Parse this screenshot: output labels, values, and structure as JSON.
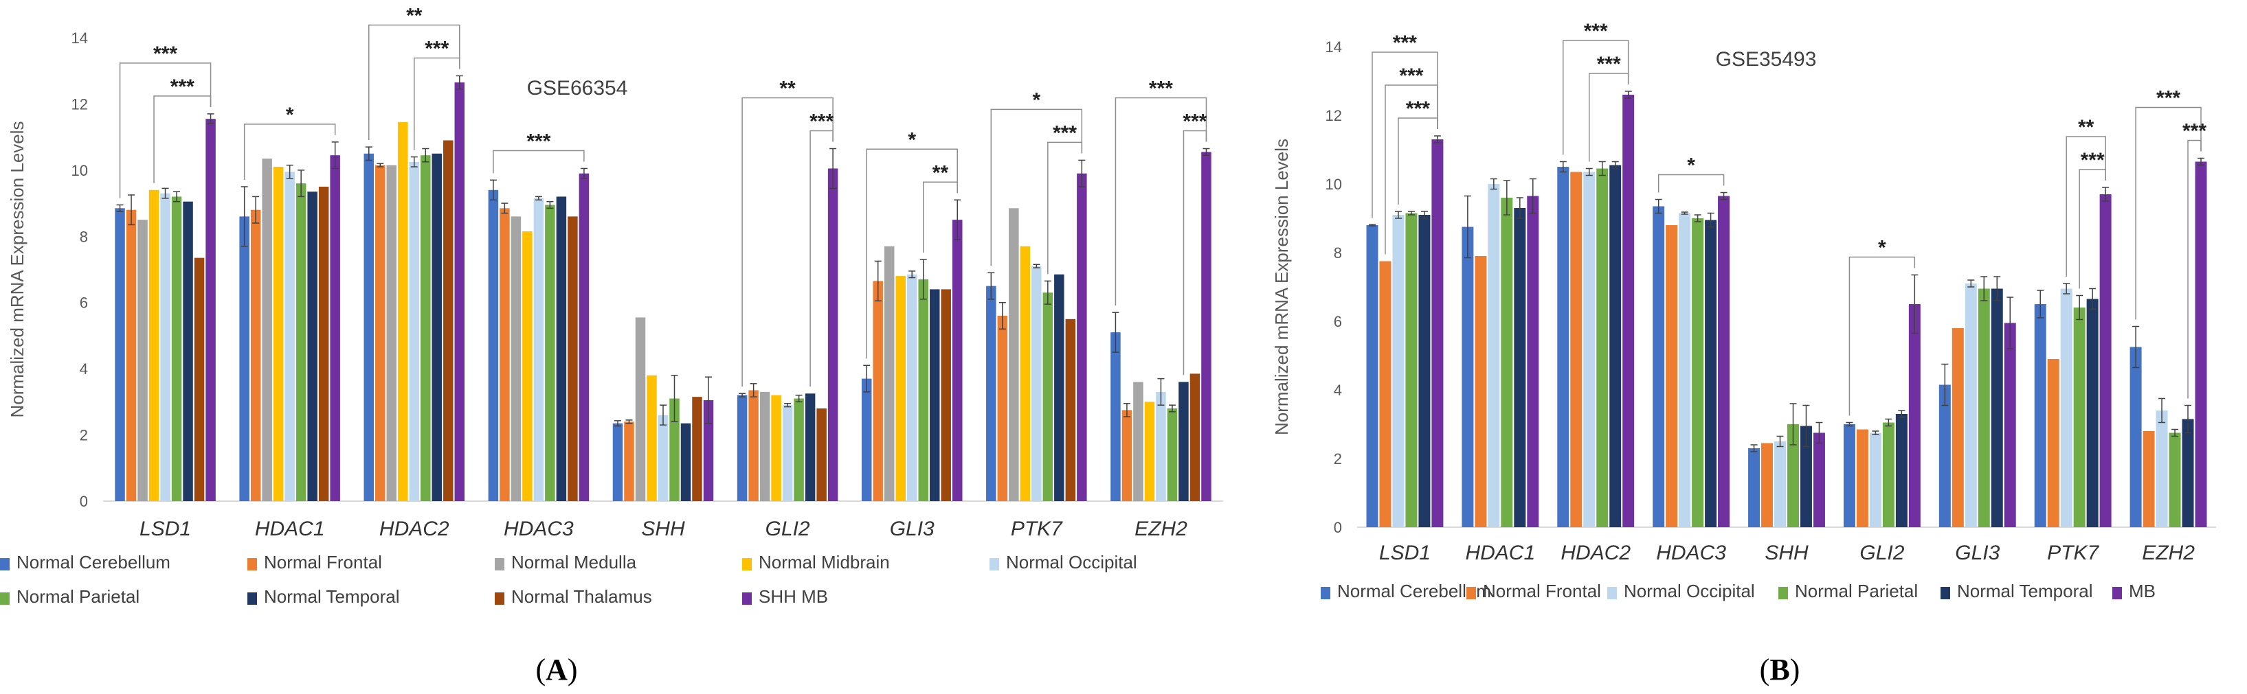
{
  "figure": {
    "panel_labels": [
      "A",
      "B"
    ]
  },
  "colors": {
    "Normal Cerebellum": "#4472c4",
    "Normal Frontal": "#ed7d31",
    "Normal Medulla": "#a5a5a5",
    "Normal Midbrain": "#ffc000",
    "Normal Occipital": "#bdd7ee",
    "Normal Parietal": "#70ad47",
    "Normal Temporal": "#1f3864",
    "Normal Thalamus": "#9e480e",
    "SHH MB": "#7030a0",
    "MB": "#7030a0"
  },
  "chart_data": [
    {
      "type": "bar",
      "panel": "A",
      "title": "GSE66354",
      "xlabel": "",
      "ylabel": "Normalized mRNA Expression Levels",
      "ylim": [
        0,
        14
      ],
      "yticks": [
        0,
        2,
        4,
        6,
        8,
        10,
        12,
        14
      ],
      "categories": [
        "LSD1",
        "HDAC1",
        "HDAC2",
        "HDAC3",
        "SHH",
        "GLI2",
        "GLI3",
        "PTK7",
        "EZH2"
      ],
      "series": [
        {
          "name": "Normal Cerebellum",
          "values": [
            8.85,
            8.6,
            10.5,
            9.4,
            2.35,
            3.2,
            3.7,
            6.5,
            5.1
          ],
          "errors": [
            0.1,
            0.9,
            0.2,
            0.3,
            0.08,
            0.05,
            0.4,
            0.4,
            0.6
          ]
        },
        {
          "name": "Normal Frontal",
          "values": [
            8.8,
            8.8,
            10.15,
            8.85,
            2.4,
            3.35,
            6.65,
            5.6,
            2.75
          ],
          "errors": [
            0.45,
            0.4,
            0.05,
            0.15,
            0.05,
            0.2,
            0.6,
            0.4,
            0.2
          ]
        },
        {
          "name": "Normal Medulla",
          "values": [
            8.5,
            10.35,
            10.15,
            8.6,
            5.55,
            3.3,
            7.7,
            8.85,
            3.6
          ],
          "errors": [
            0,
            0,
            0,
            0,
            0,
            0,
            0,
            0,
            0
          ]
        },
        {
          "name": "Normal Midbrain",
          "values": [
            9.4,
            10.1,
            11.45,
            8.15,
            3.8,
            3.2,
            6.8,
            7.7,
            3.0
          ],
          "errors": [
            0,
            0,
            0,
            0,
            0,
            0,
            0,
            0,
            0
          ]
        },
        {
          "name": "Normal Occipital",
          "values": [
            9.3,
            9.95,
            10.25,
            9.15,
            2.6,
            2.9,
            6.85,
            7.1,
            3.3
          ],
          "errors": [
            0.15,
            0.2,
            0.15,
            0.05,
            0.3,
            0.05,
            0.1,
            0.05,
            0.4
          ]
        },
        {
          "name": "Normal Parietal",
          "values": [
            9.2,
            9.6,
            10.45,
            8.95,
            3.1,
            3.1,
            6.7,
            6.3,
            2.8
          ],
          "errors": [
            0.15,
            0.4,
            0.2,
            0.1,
            0.7,
            0.1,
            0.6,
            0.35,
            0.1
          ]
        },
        {
          "name": "Normal Temporal",
          "values": [
            9.05,
            9.35,
            10.5,
            9.2,
            2.35,
            3.25,
            6.4,
            6.85,
            3.6
          ],
          "errors": [
            0,
            0,
            0,
            0,
            0,
            0,
            0,
            0,
            0
          ]
        },
        {
          "name": "Normal Thalamus",
          "values": [
            7.35,
            9.5,
            10.9,
            8.6,
            3.15,
            2.8,
            6.4,
            5.5,
            3.85
          ],
          "errors": [
            0,
            0,
            0,
            0,
            0,
            0,
            0,
            0,
            0
          ]
        },
        {
          "name": "SHH MB",
          "values": [
            11.55,
            10.45,
            12.65,
            9.9,
            3.05,
            10.05,
            8.5,
            9.9,
            10.55
          ],
          "errors": [
            0.15,
            0.4,
            0.2,
            0.15,
            0.7,
            0.6,
            0.6,
            0.4,
            0.1
          ]
        }
      ],
      "significance": [
        {
          "category": "LSD1",
          "label": "***",
          "from": "Normal Cerebellum"
        },
        {
          "category": "LSD1",
          "label": "***",
          "from": "Normal Midbrain"
        },
        {
          "category": "HDAC1",
          "label": "*",
          "from": "Normal Cerebellum"
        },
        {
          "category": "HDAC2",
          "label": "**",
          "from": "Normal Cerebellum"
        },
        {
          "category": "HDAC2",
          "label": "***",
          "from": "Normal Occipital"
        },
        {
          "category": "HDAC3",
          "label": "***",
          "from": "Normal Cerebellum"
        },
        {
          "category": "GLI2",
          "label": "**",
          "from": "Normal Cerebellum"
        },
        {
          "category": "GLI2",
          "label": "***",
          "from": "Normal Temporal"
        },
        {
          "category": "GLI3",
          "label": "*",
          "from": "Normal Cerebellum"
        },
        {
          "category": "GLI3",
          "label": "**",
          "from": "Normal Parietal"
        },
        {
          "category": "PTK7",
          "label": "*",
          "from": "Normal Cerebellum"
        },
        {
          "category": "PTK7",
          "label": "***",
          "from": "Normal Parietal"
        },
        {
          "category": "EZH2",
          "label": "***",
          "from": "Normal Cerebellum"
        },
        {
          "category": "EZH2",
          "label": "***",
          "from": "Normal Temporal"
        }
      ],
      "legend": {
        "position": "bottom",
        "entries": [
          "Normal Cerebellum",
          "Normal Frontal",
          "Normal Medulla",
          "Normal Midbrain",
          "Normal Occipital",
          "Normal Parietal",
          "Normal Temporal",
          "Normal Thalamus",
          "SHH MB"
        ]
      }
    },
    {
      "type": "bar",
      "panel": "B",
      "title": "GSE35493",
      "xlabel": "",
      "ylabel": "Normalized mRNA Expression Levels",
      "ylim": [
        0,
        14
      ],
      "yticks": [
        0,
        2,
        4,
        6,
        8,
        10,
        12,
        14
      ],
      "categories": [
        "LSD1",
        "HDAC1",
        "HDAC2",
        "HDAC3",
        "SHH",
        "GLI2",
        "GLI3",
        "PTK7",
        "EZH2"
      ],
      "series": [
        {
          "name": "Normal Cerebellum",
          "values": [
            8.8,
            8.75,
            10.5,
            9.35,
            2.3,
            3.0,
            4.15,
            6.5,
            5.25
          ],
          "errors": [
            0.02,
            0.9,
            0.15,
            0.2,
            0.1,
            0.05,
            0.6,
            0.4,
            0.6
          ]
        },
        {
          "name": "Normal Frontal",
          "values": [
            7.75,
            7.9,
            10.35,
            8.8,
            2.45,
            2.85,
            5.8,
            4.9,
            2.8
          ],
          "errors": [
            0,
            0,
            0,
            0,
            0,
            0,
            0,
            0,
            0
          ]
        },
        {
          "name": "Normal Occipital",
          "values": [
            9.1,
            10.0,
            10.35,
            9.15,
            2.5,
            2.75,
            7.1,
            6.95,
            3.4
          ],
          "errors": [
            0.1,
            0.15,
            0.1,
            0.03,
            0.15,
            0.05,
            0.1,
            0.15,
            0.35
          ]
        },
        {
          "name": "Normal Parietal",
          "values": [
            9.15,
            9.6,
            10.45,
            9.0,
            3.0,
            3.05,
            6.95,
            6.4,
            2.75
          ],
          "errors": [
            0.05,
            0.5,
            0.2,
            0.1,
            0.6,
            0.1,
            0.35,
            0.35,
            0.1
          ]
        },
        {
          "name": "Normal Temporal",
          "values": [
            9.1,
            9.3,
            10.55,
            8.95,
            2.95,
            3.3,
            6.95,
            6.65,
            3.15
          ],
          "errors": [
            0.1,
            0.3,
            0.1,
            0.2,
            0.6,
            0.1,
            0.35,
            0.3,
            0.4
          ]
        },
        {
          "name": "MB",
          "values": [
            11.3,
            9.65,
            12.6,
            9.65,
            2.75,
            6.5,
            5.95,
            9.7,
            10.65
          ],
          "errors": [
            0.1,
            0.5,
            0.1,
            0.1,
            0.3,
            0.85,
            0.75,
            0.2,
            0.1
          ]
        }
      ],
      "significance": [
        {
          "category": "LSD1",
          "label": "***",
          "from": "Normal Cerebellum"
        },
        {
          "category": "LSD1",
          "label": "***",
          "from": "Normal Frontal"
        },
        {
          "category": "LSD1",
          "label": "***",
          "from": "Normal Occipital"
        },
        {
          "category": "HDAC2",
          "label": "***",
          "from": "Normal Cerebellum"
        },
        {
          "category": "HDAC2",
          "label": "***",
          "from": "Normal Occipital"
        },
        {
          "category": "HDAC3",
          "label": "*",
          "from": "Normal Cerebellum"
        },
        {
          "category": "GLI2",
          "label": "*",
          "from": "Normal Cerebellum"
        },
        {
          "category": "PTK7",
          "label": "**",
          "from": "Normal Occipital"
        },
        {
          "category": "PTK7",
          "label": "***",
          "from": "Normal Parietal"
        },
        {
          "category": "EZH2",
          "label": "***",
          "from": "Normal Cerebellum"
        },
        {
          "category": "EZH2",
          "label": "***",
          "from": "Normal Temporal"
        }
      ],
      "legend": {
        "position": "bottom",
        "entries": [
          "Normal Cerebellum",
          "Normal Frontal",
          "Normal Occipital",
          "Normal Parietal",
          "Normal Temporal",
          "MB"
        ]
      }
    }
  ]
}
